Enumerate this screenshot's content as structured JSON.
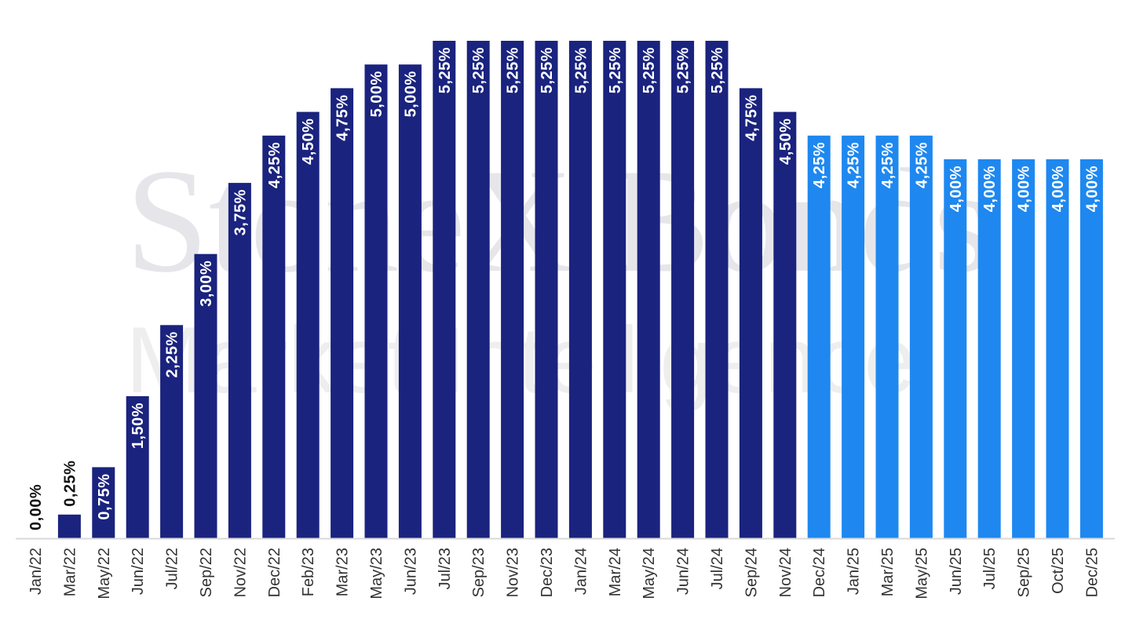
{
  "watermark": {
    "brand": "StoneX Bonds",
    "tagline": "Market Intelligence",
    "registered_mark": "®"
  },
  "chart_data": {
    "type": "bar",
    "categories": [
      "Jan/22",
      "Mar/22",
      "May/22",
      "Jun/22",
      "Jul/22",
      "Sep/22",
      "Nov/22",
      "Dec/22",
      "Feb/23",
      "Mar/23",
      "May/23",
      "Jun/23",
      "Jul/23",
      "Sep/23",
      "Nov/23",
      "Dec/23",
      "Jan/24",
      "Mar/24",
      "May/24",
      "Jun/24",
      "Jul/24",
      "Sep/24",
      "Nov/24",
      "Dec/24",
      "Jan/25",
      "Mar/25",
      "May/25",
      "Jun/25",
      "Jul/25",
      "Sep/25",
      "Oct/25",
      "Dec/25"
    ],
    "values": [
      0.0,
      0.25,
      0.75,
      1.5,
      2.25,
      3.0,
      3.75,
      4.25,
      4.5,
      4.75,
      5.0,
      5.0,
      5.25,
      5.25,
      5.25,
      5.25,
      5.25,
      5.25,
      5.25,
      5.25,
      5.25,
      4.75,
      4.5,
      4.25,
      4.25,
      4.25,
      4.25,
      4.0,
      4.0,
      4.0,
      4.0,
      4.0
    ],
    "labels": [
      "0,00%",
      "0,25%",
      "0,75%",
      "1,50%",
      "2,25%",
      "3,00%",
      "3,75%",
      "4,25%",
      "4,50%",
      "4,75%",
      "5,00%",
      "5,00%",
      "5,25%",
      "5,25%",
      "5,25%",
      "5,25%",
      "5,25%",
      "5,25%",
      "5,25%",
      "5,25%",
      "5,25%",
      "4,75%",
      "4,50%",
      "4,25%",
      "4,25%",
      "4,25%",
      "4,25%",
      "4,00%",
      "4,00%",
      "4,00%",
      "4,00%",
      "4,00%"
    ],
    "projected_from_index": 23,
    "ylim": [
      0,
      5.25
    ],
    "grid": false,
    "title": "",
    "xlabel": "",
    "ylabel": "",
    "colors": {
      "actual": "#1a237e",
      "projected": "#1e88f0",
      "axis": "#d9d9d9",
      "watermark": "#e6e6ea"
    }
  }
}
